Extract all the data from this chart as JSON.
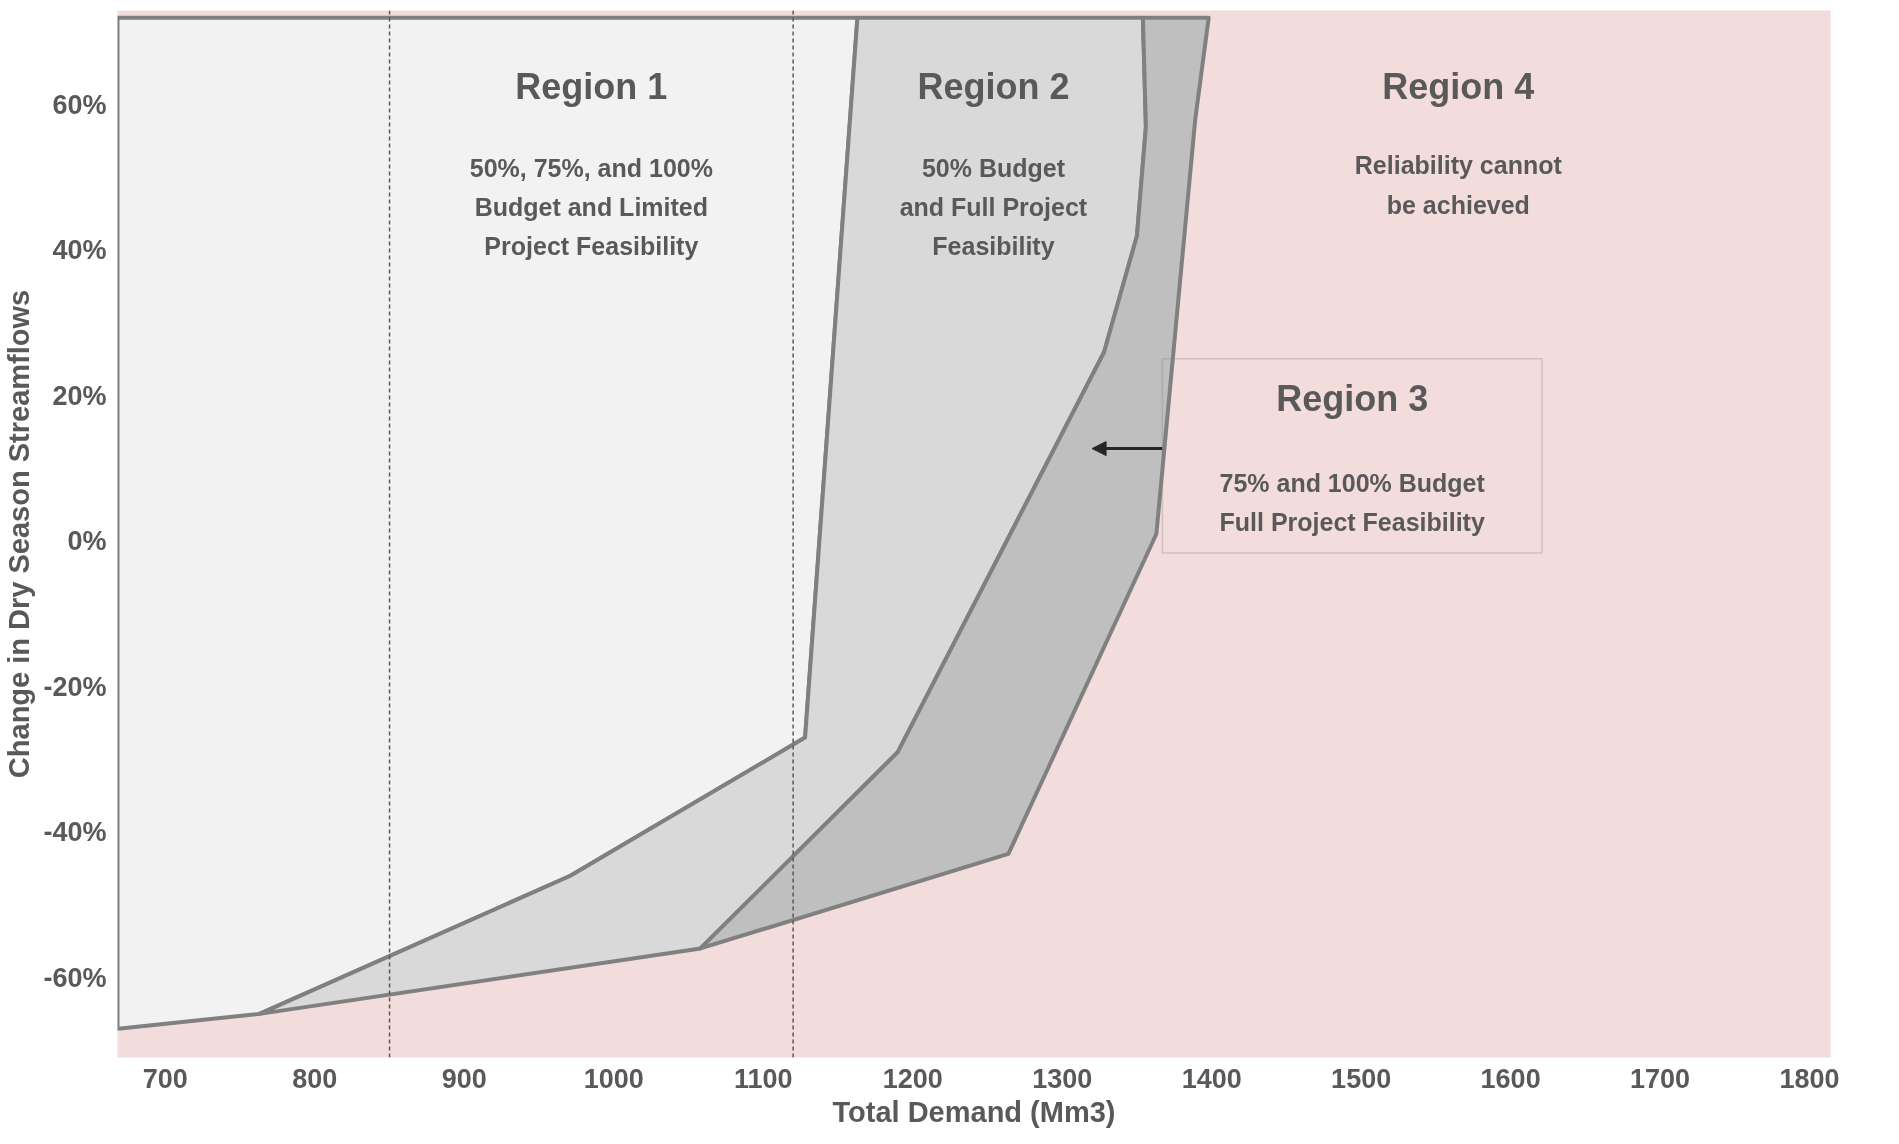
{
  "chart_data": {
    "type": "area",
    "xlabel": "Total Demand (Mm3)",
    "ylabel": "Change in Dry Season Streamflows",
    "xlim": [
      668,
      1814
    ],
    "ylim": [
      -71,
      73
    ],
    "xticks": [
      700,
      800,
      900,
      1000,
      1100,
      1200,
      1300,
      1400,
      1500,
      1600,
      1700,
      1800
    ],
    "yticks": [
      {
        "value": -60,
        "label": "-60%"
      },
      {
        "value": -40,
        "label": "-40%"
      },
      {
        "value": -20,
        "label": "-20%"
      },
      {
        "value": 0,
        "label": "0%"
      },
      {
        "value": 20,
        "label": "20%"
      },
      {
        "value": 40,
        "label": "40%"
      },
      {
        "value": 60,
        "label": "60%"
      }
    ],
    "grid": false,
    "series": [
      {
        "color": "#f2f2f2",
        "x": [
          668,
          1163,
          1128,
          971,
          763,
          670,
          668
        ],
        "values": [
          72,
          72,
          -27,
          -46,
          -65,
          -67,
          -67
        ]
      },
      {
        "color": "#d9d9d9",
        "x": [
          1163,
          1354,
          1356,
          1350,
          1328,
          1190,
          1058,
          763,
          971,
          1128
        ],
        "values": [
          72,
          72,
          57,
          42,
          26,
          -29,
          -56,
          -65,
          -46,
          -27
        ]
      },
      {
        "color": "#bfbfbf",
        "x": [
          1354,
          1398,
          1389,
          1363,
          1264,
          1058,
          1190,
          1328,
          1350,
          1356
        ],
        "values": [
          72,
          72,
          58,
          1,
          -43,
          -56,
          -29,
          26,
          42,
          57
        ]
      }
    ],
    "ref_lines": [
      {
        "axis": "x",
        "value": 850,
        "color": "#595959",
        "line_style": "dashed"
      },
      {
        "axis": "x",
        "value": 1120,
        "color": "#595959",
        "line_style": "dashed"
      }
    ],
    "annotations": [
      "Region 1",
      "50%, 75%, and 100%\nBudget and Limited\nProject Feasibility",
      "Region 2",
      "50% Budget\nand Full Project\nFeasibility",
      "Region 4",
      "Reliability cannot\nbe achieved",
      "Region 3",
      "75% and 100% Budget\nFull Project Feasibility"
    ]
  }
}
